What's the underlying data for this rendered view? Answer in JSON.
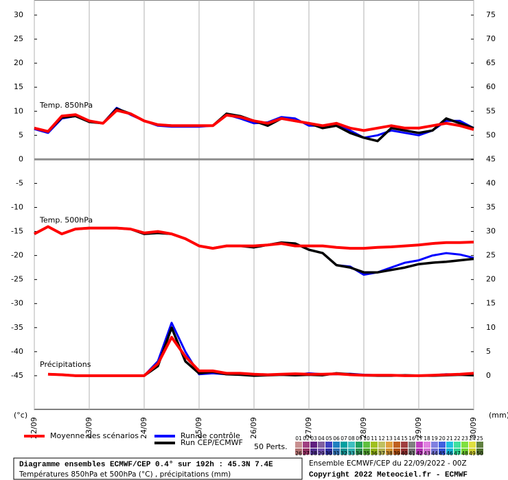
{
  "chart_data": {
    "type": "line",
    "annotations": [
      "Temp. 850hPa",
      "Temp. 500hPa",
      "Précipitations"
    ],
    "y_unit_label": "(°c)",
    "y2_unit_label": "(mm)",
    "x": [
      0,
      6,
      12,
      18,
      24,
      30,
      36,
      42,
      48,
      54,
      60,
      66,
      72,
      78,
      84,
      90,
      96,
      102,
      108,
      114,
      120,
      126,
      132,
      138,
      144,
      150,
      156,
      162,
      168,
      174,
      180,
      186,
      192
    ],
    "xlim": [
      0,
      192
    ],
    "xticks": [
      {
        "value": 0,
        "label": "22/09"
      },
      {
        "value": 24,
        "label": "23/09"
      },
      {
        "value": 48,
        "label": "24/09"
      },
      {
        "value": 72,
        "label": "25/09"
      },
      {
        "value": 96,
        "label": "26/09"
      },
      {
        "value": 120,
        "label": "27/09"
      },
      {
        "value": 144,
        "label": "28/09"
      },
      {
        "value": 168,
        "label": "29/09"
      },
      {
        "value": 192,
        "label": "30/09"
      }
    ],
    "ylim": [
      -52,
      31
    ],
    "yticks": [
      -45,
      -40,
      -35,
      -30,
      -25,
      -20,
      -15,
      -10,
      -5,
      0,
      5,
      10,
      15,
      20,
      25,
      30
    ],
    "y2lim": [
      -7,
      76
    ],
    "y2ticks": [
      0,
      5,
      10,
      15,
      20,
      25,
      30,
      35,
      40,
      45,
      50,
      55,
      60,
      65,
      70,
      75
    ],
    "series": [
      {
        "name": "Run de contrôle",
        "color": "#0000ff",
        "width": 3,
        "t850": [
          6.3,
          5.5,
          8.5,
          9,
          7.8,
          7.5,
          10.7,
          9.3,
          8,
          7,
          6.8,
          6.8,
          6.8,
          7,
          9.3,
          8.5,
          7.5,
          7.7,
          8.8,
          8.5,
          7,
          7,
          7.5,
          6,
          4.5,
          5,
          6,
          5.5,
          5,
          6,
          8,
          8,
          6.5
        ],
        "t500": [
          -15.5,
          -14,
          -15.5,
          -14.5,
          -14.3,
          -14.3,
          -14.3,
          -14.5,
          -15.5,
          -15.3,
          -15.5,
          -16.5,
          -18,
          -18.5,
          -18,
          -18,
          -18.3,
          -17.8,
          -17.3,
          -17.5,
          -18.8,
          -19.5,
          -22,
          -22.3,
          -24,
          -23.5,
          -22.5,
          -21.5,
          -21,
          -20,
          -19.5,
          -19.8,
          -20.5
        ],
        "precip": [
          null,
          0.3,
          0.2,
          0,
          0,
          0,
          0,
          0,
          0,
          3,
          11,
          5,
          0.3,
          0.5,
          0.3,
          0.5,
          0.1,
          0.1,
          0.3,
          0.2,
          0.5,
          0.3,
          0.3,
          0.4,
          0.2,
          0.1,
          0,
          0,
          0,
          0.1,
          0.3,
          0.2,
          0.3
        ]
      },
      {
        "name": "Run CEP/ECMWF",
        "color": "#000000",
        "width": 3.5,
        "t850": [
          6.5,
          5.8,
          8.7,
          9,
          7.8,
          7.5,
          10.5,
          9.5,
          8,
          7.2,
          7,
          7,
          7,
          7,
          9.5,
          9,
          8,
          7,
          8.5,
          8,
          7.5,
          6.5,
          7,
          5.5,
          4.5,
          3.8,
          6.5,
          6,
          5.5,
          6,
          8.5,
          7.5,
          6.5
        ],
        "t500": [
          -15.5,
          -14,
          -15.5,
          -14.5,
          -14.3,
          -14.3,
          -14.3,
          -14.5,
          -15.5,
          -15.3,
          -15.5,
          -16.5,
          -18,
          -18.5,
          -18,
          -18,
          -18.3,
          -17.8,
          -17.3,
          -17.5,
          -18.8,
          -19.5,
          -22,
          -22.5,
          -23.5,
          -23.5,
          -23,
          -22.5,
          -21.8,
          -21.5,
          -21.3,
          -21,
          -20.7
        ],
        "precip": [
          null,
          0.3,
          0.2,
          0,
          0,
          0,
          0,
          0,
          0,
          2,
          10,
          3,
          0.5,
          0.8,
          0.3,
          0.2,
          0,
          0.1,
          0.2,
          0.1,
          0.2,
          0.1,
          0.5,
          0.3,
          0.1,
          0,
          0,
          0.1,
          0,
          0,
          0.1,
          0.2,
          0.1
        ]
      },
      {
        "name": "Moyenne des scénarios",
        "color": "#ff0000",
        "width": 4,
        "t850": [
          6.5,
          5.8,
          9,
          9.3,
          8,
          7.5,
          10.2,
          9.5,
          8,
          7.2,
          7,
          7,
          7,
          7,
          9.2,
          8.8,
          8,
          7.5,
          8.5,
          8,
          7.5,
          7,
          7.5,
          6.5,
          6,
          6.5,
          7,
          6.5,
          6.5,
          7,
          7.5,
          7,
          6.2
        ],
        "t500": [
          -15.5,
          -14,
          -15.5,
          -14.5,
          -14.3,
          -14.3,
          -14.3,
          -14.5,
          -15.3,
          -15,
          -15.5,
          -16.5,
          -18,
          -18.5,
          -18,
          -18,
          -18,
          -17.8,
          -17.5,
          -18,
          -18,
          -18,
          -18.3,
          -18.5,
          -18.5,
          -18.3,
          -18.2,
          -18,
          -17.8,
          -17.5,
          -17.3,
          -17.3,
          -17.2
        ],
        "precip": [
          null,
          0.3,
          0.2,
          0,
          0,
          0,
          0,
          0,
          0,
          2.5,
          8,
          4,
          1,
          1,
          0.5,
          0.5,
          0.3,
          0.2,
          0.3,
          0.4,
          0.3,
          0.3,
          0.4,
          0.2,
          0.1,
          0.1,
          0.1,
          0,
          0,
          0.1,
          0.2,
          0.3,
          0.5
        ]
      }
    ],
    "legend_order": [
      2,
      0,
      1
    ],
    "perturbations": {
      "label": "50 Perts.",
      "members": [
        {
          "name": "01",
          "color": "#c89090"
        },
        {
          "name": "02",
          "color": "#a04080"
        },
        {
          "name": "03",
          "color": "#602080"
        },
        {
          "name": "04",
          "color": "#8060a0"
        },
        {
          "name": "05",
          "color": "#4040c0"
        },
        {
          "name": "06",
          "color": "#2080c0"
        },
        {
          "name": "07",
          "color": "#00a0a0"
        },
        {
          "name": "08",
          "color": "#40c0c0"
        },
        {
          "name": "09",
          "color": "#20a060"
        },
        {
          "name": "10",
          "color": "#60c040"
        },
        {
          "name": "11",
          "color": "#a0c020"
        },
        {
          "name": "12",
          "color": "#c0c060"
        },
        {
          "name": "13",
          "color": "#e0a040"
        },
        {
          "name": "14",
          "color": "#c06020"
        },
        {
          "name": "15",
          "color": "#a04040"
        },
        {
          "name": "16",
          "color": "#808080"
        },
        {
          "name": "17",
          "color": "#c040c0"
        },
        {
          "name": "18",
          "color": "#e080e0"
        },
        {
          "name": "19",
          "color": "#8080e0"
        },
        {
          "name": "20",
          "color": "#4060e0"
        },
        {
          "name": "21",
          "color": "#20c0e0"
        },
        {
          "name": "22",
          "color": "#40e0a0"
        },
        {
          "name": "23",
          "color": "#80e040"
        },
        {
          "name": "24",
          "color": "#e0e040"
        },
        {
          "name": "25",
          "color": "#608040"
        },
        {
          "name": "26",
          "color": "#b07070"
        },
        {
          "name": "27",
          "color": "#903060"
        },
        {
          "name": "28",
          "color": "#503090"
        },
        {
          "name": "29",
          "color": "#7050b0"
        },
        {
          "name": "30",
          "color": "#3030a0"
        },
        {
          "name": "31",
          "color": "#3070b0"
        },
        {
          "name": "32",
          "color": "#109090"
        },
        {
          "name": "33",
          "color": "#30b0b0"
        },
        {
          "name": "34",
          "color": "#309050"
        },
        {
          "name": "35",
          "color": "#50a030"
        },
        {
          "name": "36",
          "color": "#90b010"
        },
        {
          "name": "37",
          "color": "#b0b050"
        },
        {
          "name": "38",
          "color": "#d09030"
        },
        {
          "name": "39",
          "color": "#b05010"
        },
        {
          "name": "40",
          "color": "#903030"
        },
        {
          "name": "41",
          "color": "#707070"
        },
        {
          "name": "42",
          "color": "#b030b0"
        },
        {
          "name": "43",
          "color": "#d070d0"
        },
        {
          "name": "44",
          "color": "#7070d0"
        },
        {
          "name": "45",
          "color": "#3050d0"
        },
        {
          "name": "46",
          "color": "#10b0d0"
        },
        {
          "name": "47",
          "color": "#30d090"
        },
        {
          "name": "48",
          "color": "#70d030"
        },
        {
          "name": "49",
          "color": "#d0d030"
        },
        {
          "name": "50",
          "color": "#507030"
        }
      ]
    }
  },
  "footer": {
    "title": "Diagramme ensembles ECMWF/CEP 0.4° sur 192h : 45.3N 7.4E",
    "subtitle": "Températures 850hPa et 500hPa (°C) , précipitations (mm)",
    "run": "Ensemble ECMWF/CEP du 22/09/2022 - 00Z",
    "copyright": "Copyright 2022 Meteociel.fr - ECMWF"
  }
}
